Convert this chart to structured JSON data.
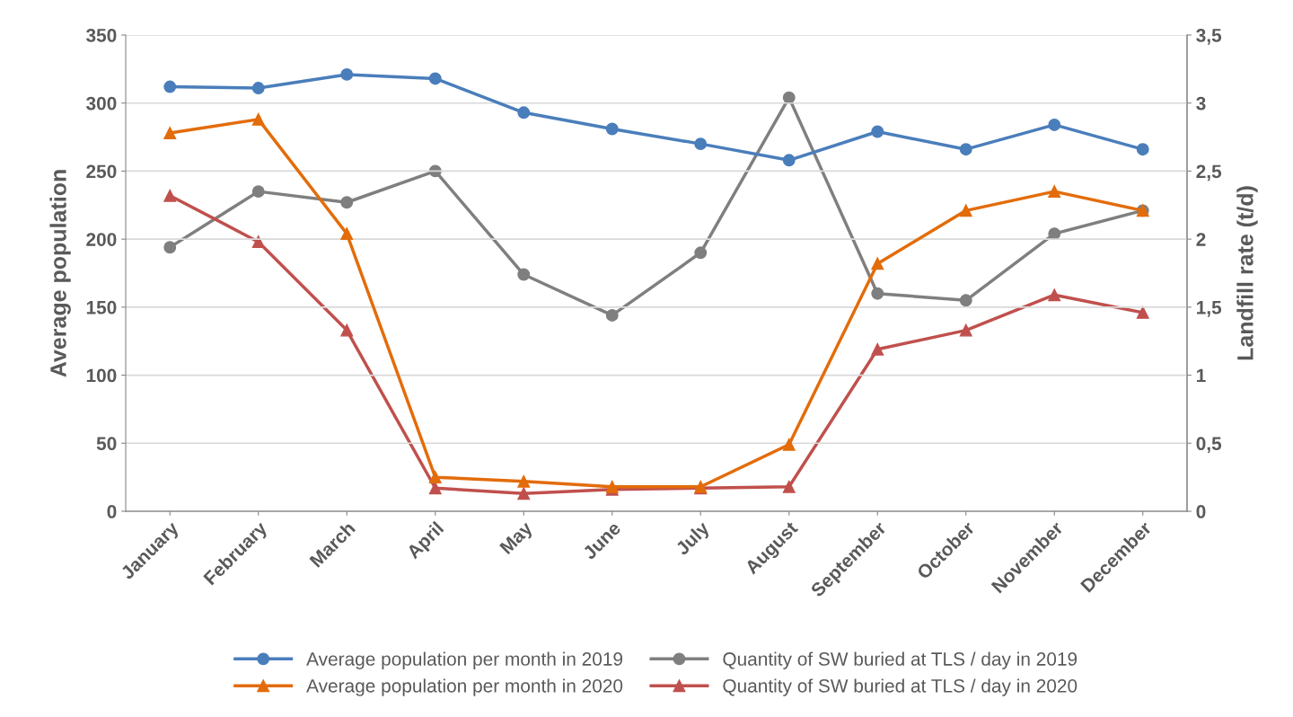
{
  "chart_data": {
    "type": "line",
    "categories": [
      "January",
      "February",
      "March",
      "April",
      "May",
      "June",
      "July",
      "August",
      "September",
      "October",
      "November",
      "December"
    ],
    "ylabel": "Average population",
    "y2label": "Landfill rate (t/d)",
    "ylim": [
      0,
      350
    ],
    "yticks": [
      0,
      50,
      100,
      150,
      200,
      250,
      300,
      350
    ],
    "y2lim": [
      0,
      3.5
    ],
    "y2ticks": [
      {
        "value": 0,
        "label": "0"
      },
      {
        "value": 0.5,
        "label": "0,5"
      },
      {
        "value": 1,
        "label": "1"
      },
      {
        "value": 1.5,
        "label": "1,5"
      },
      {
        "value": 2,
        "label": "2"
      },
      {
        "value": 2.5,
        "label": "2,5"
      },
      {
        "value": 3,
        "label": "3"
      },
      {
        "value": 3.5,
        "label": "3,5"
      }
    ],
    "grid": "y",
    "legend": "bottom",
    "line_style": "solid",
    "series": [
      {
        "name": "Average population per month in 2019",
        "color": "#4a7ebb",
        "marker": "circle",
        "values": [
          312,
          311,
          321,
          318,
          293,
          281,
          270,
          258,
          279,
          266,
          284,
          266
        ]
      },
      {
        "name": "Average population per month in 2020",
        "color": "#e36c0a",
        "marker": "triangle",
        "values": [
          278,
          288,
          204,
          25,
          22,
          18,
          18,
          49,
          182,
          221,
          235,
          221
        ]
      },
      {
        "name": "Quantity of SW buried at TLS / day in 2019",
        "color": "#7f7f7f",
        "marker": "circle",
        "axis": "y2",
        "values": [
          1.94,
          2.35,
          2.27,
          2.5,
          1.74,
          1.44,
          1.9,
          3.04,
          1.6,
          1.55,
          2.04,
          2.21
        ]
      },
      {
        "name": "Quantity of SW buried at TLS / day in 2020",
        "color": "#c0504d",
        "marker": "triangle",
        "axis": "y2",
        "values": [
          2.32,
          1.98,
          1.33,
          0.17,
          0.13,
          0.16,
          0.17,
          0.18,
          1.19,
          1.33,
          1.59,
          1.46
        ]
      }
    ]
  }
}
